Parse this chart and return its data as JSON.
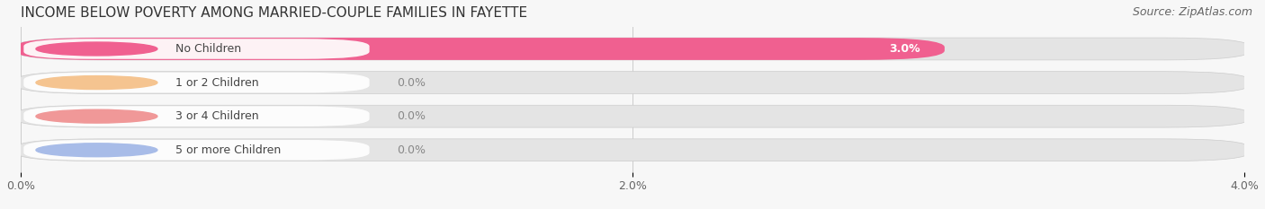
{
  "title": "INCOME BELOW POVERTY AMONG MARRIED-COUPLE FAMILIES IN FAYETTE",
  "source": "Source: ZipAtlas.com",
  "categories": [
    "No Children",
    "1 or 2 Children",
    "3 or 4 Children",
    "5 or more Children"
  ],
  "values": [
    3.0,
    0.0,
    0.0,
    0.0
  ],
  "bar_colors": [
    "#f06090",
    "#f5c490",
    "#f09898",
    "#a8bce8"
  ],
  "xlim_max": 4.0,
  "xticks": [
    0.0,
    2.0,
    4.0
  ],
  "xtick_labels": [
    "0.0%",
    "2.0%",
    "4.0%"
  ],
  "bg_color": "#f7f7f7",
  "bar_bg_color": "#e4e4e4",
  "label_bg_color": "#ffffff",
  "title_fontsize": 11,
  "source_fontsize": 9,
  "label_fontsize": 9,
  "value_fontsize": 9,
  "tick_fontsize": 9,
  "value_color_inside": "#ffffff",
  "value_color_outside": "#888888"
}
